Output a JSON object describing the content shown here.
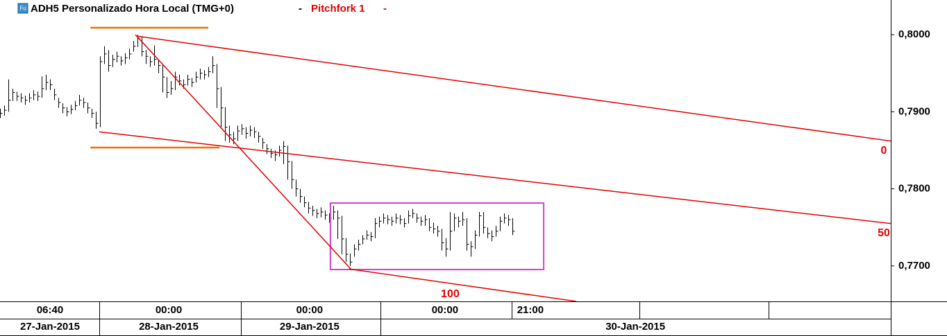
{
  "chart_data": {
    "type": "ohlc",
    "icon_label": "Fu",
    "title": "ADH5 Personalizado Hora Local (TMG+0)",
    "title_separator": "-",
    "indicator": "Pitchfork 1",
    "indicator_separator": "-",
    "color": "#000000",
    "xlim": [
      0,
      213.8
    ],
    "ylim": [
      0.7654,
      0.8045
    ],
    "yticks": [
      {
        "value": 0.77,
        "label": "0,7700"
      },
      {
        "value": 0.78,
        "label": "0,7800"
      },
      {
        "value": 0.79,
        "label": "0,7900"
      },
      {
        "value": 0.8,
        "label": "0,8000"
      }
    ],
    "xticks": [
      {
        "value": 12,
        "label": "06:40"
      },
      {
        "value": 40.5,
        "label": "00:00"
      },
      {
        "value": 74.3,
        "label": "00:00"
      },
      {
        "value": 106.8,
        "label": "00:00"
      },
      {
        "value": 127.3,
        "label": "21:00"
      }
    ],
    "date_ticks": [
      {
        "value": 12,
        "label": "27-Jan-2015"
      },
      {
        "value": 40.5,
        "label": "28-Jan-2015"
      },
      {
        "value": 74.3,
        "label": "29-Jan-2015"
      },
      {
        "value": 152.5,
        "label": "30-Jan-2015"
      }
    ],
    "high": [
      0.7904,
      0.7908,
      0.7942,
      0.793,
      0.7926,
      0.7924,
      0.7921,
      0.7924,
      0.7928,
      0.7926,
      0.7946,
      0.7948,
      0.7942,
      0.793,
      0.7918,
      0.7911,
      0.7906,
      0.7909,
      0.7914,
      0.7922,
      0.7918,
      0.7912,
      0.7904,
      0.79,
      0.7972,
      0.7985,
      0.798,
      0.7974,
      0.7978,
      0.7972,
      0.7976,
      0.7982,
      0.7992,
      0.8,
      0.7998,
      0.798,
      0.7972,
      0.7986,
      0.7968,
      0.7962,
      0.7945,
      0.794,
      0.7952,
      0.7948,
      0.7942,
      0.7948,
      0.7944,
      0.7952,
      0.7956,
      0.7954,
      0.7958,
      0.7972,
      0.7962,
      0.7932,
      0.7906,
      0.7882,
      0.7874,
      0.7882,
      0.7884,
      0.788,
      0.7882,
      0.788,
      0.7874,
      0.7866,
      0.7858,
      0.7852,
      0.785,
      0.7856,
      0.7862,
      0.7856,
      0.7836,
      0.7812,
      0.78,
      0.779,
      0.7783,
      0.7778,
      0.7774,
      0.7776,
      0.7772,
      0.7768,
      0.7778,
      0.7772,
      0.7765,
      0.7736,
      0.7716,
      0.7728,
      0.7734,
      0.774,
      0.7746,
      0.7744,
      0.7762,
      0.7764,
      0.7768,
      0.7766,
      0.7764,
      0.7768,
      0.7766,
      0.7762,
      0.7772,
      0.7774,
      0.7768,
      0.7764,
      0.7766,
      0.7762,
      0.7756,
      0.7752,
      0.7748,
      0.7736,
      0.777,
      0.7768,
      0.7764,
      0.777,
      0.7762,
      0.7732,
      0.7746,
      0.777,
      0.777,
      0.775,
      0.7746,
      0.7752,
      0.7764,
      0.7768,
      0.7766,
      0.7762
    ],
    "low": [
      0.7892,
      0.7895,
      0.79,
      0.7914,
      0.7914,
      0.7912,
      0.7909,
      0.7912,
      0.7915,
      0.7914,
      0.7918,
      0.7928,
      0.7928,
      0.7915,
      0.7905,
      0.7898,
      0.7894,
      0.7897,
      0.7902,
      0.7908,
      0.7905,
      0.7898,
      0.7892,
      0.7878,
      0.788,
      0.7962,
      0.7952,
      0.7958,
      0.7964,
      0.796,
      0.7962,
      0.7968,
      0.7978,
      0.7984,
      0.7972,
      0.7962,
      0.7958,
      0.796,
      0.795,
      0.7925,
      0.7918,
      0.7922,
      0.7928,
      0.7934,
      0.793,
      0.7934,
      0.7932,
      0.7938,
      0.7942,
      0.7942,
      0.7945,
      0.795,
      0.7905,
      0.788,
      0.7862,
      0.786,
      0.7858,
      0.7862,
      0.787,
      0.7865,
      0.7868,
      0.7866,
      0.786,
      0.7852,
      0.7845,
      0.784,
      0.7836,
      0.7842,
      0.7832,
      0.7812,
      0.78,
      0.779,
      0.7782,
      0.7776,
      0.7768,
      0.7765,
      0.7762,
      0.7763,
      0.776,
      0.7756,
      0.776,
      0.7735,
      0.7715,
      0.7705,
      0.77,
      0.7712,
      0.772,
      0.7728,
      0.7734,
      0.7732,
      0.7736,
      0.775,
      0.7755,
      0.7754,
      0.7752,
      0.7755,
      0.7754,
      0.775,
      0.7755,
      0.7762,
      0.7756,
      0.7752,
      0.7752,
      0.7745,
      0.7742,
      0.7738,
      0.772,
      0.7712,
      0.772,
      0.7745,
      0.775,
      0.7752,
      0.772,
      0.7712,
      0.7722,
      0.7738,
      0.7742,
      0.7736,
      0.7732,
      0.7738,
      0.7745,
      0.7755,
      0.7752,
      0.774
    ],
    "close": [
      0.7898,
      0.7902,
      0.7915,
      0.7925,
      0.792,
      0.7918,
      0.7915,
      0.7918,
      0.7922,
      0.792,
      0.793,
      0.7938,
      0.7935,
      0.7922,
      0.7912,
      0.7905,
      0.79,
      0.7903,
      0.7908,
      0.7915,
      0.7912,
      0.7905,
      0.7898,
      0.7885,
      0.7965,
      0.7975,
      0.796,
      0.7968,
      0.7972,
      0.7966,
      0.797,
      0.7975,
      0.7985,
      0.7995,
      0.7978,
      0.7972,
      0.7965,
      0.7968,
      0.796,
      0.7945,
      0.7925,
      0.793,
      0.7945,
      0.794,
      0.7935,
      0.7942,
      0.7938,
      0.7945,
      0.795,
      0.7948,
      0.7952,
      0.796,
      0.793,
      0.7905,
      0.788,
      0.787,
      0.7865,
      0.7875,
      0.7878,
      0.7872,
      0.7876,
      0.7874,
      0.7868,
      0.786,
      0.7852,
      0.7846,
      0.7844,
      0.785,
      0.7855,
      0.7835,
      0.7812,
      0.78,
      0.779,
      0.7782,
      0.7775,
      0.7772,
      0.7768,
      0.777,
      0.7766,
      0.7762,
      0.777,
      0.7762,
      0.7735,
      0.7715,
      0.7705,
      0.7722,
      0.7728,
      0.7735,
      0.774,
      0.7738,
      0.7755,
      0.7758,
      0.7762,
      0.776,
      0.7758,
      0.7762,
      0.776,
      0.7755,
      0.7765,
      0.7768,
      0.7762,
      0.7758,
      0.776,
      0.775,
      0.7748,
      0.7745,
      0.773,
      0.7722,
      0.7745,
      0.7762,
      0.7758,
      0.776,
      0.7728,
      0.7725,
      0.774,
      0.7765,
      0.775,
      0.7742,
      0.7738,
      0.7745,
      0.7758,
      0.7762,
      0.776,
      0.7745
    ],
    "pitchfork_color": "#e00000",
    "pitchfork": [
      {
        "label": "0",
        "points": [
          [
            33,
            0.7998
          ],
          [
            213.8,
            0.7862
          ]
        ]
      },
      {
        "label": "50",
        "points": [
          [
            23.8,
            0.7874
          ],
          [
            213.8,
            0.7755
          ]
        ]
      },
      {
        "label": "100",
        "points": [
          [
            83.8,
            0.7696
          ],
          [
            138.3,
            0.7654
          ]
        ]
      }
    ],
    "pitchfork_handle": [
      [
        32.5,
        0.8
      ],
      [
        84.2,
        0.7696
      ]
    ],
    "level_color": "#f07000",
    "levels": [
      {
        "x": [
          21.7,
          50
        ],
        "y": 0.8009
      },
      {
        "x": [
          21.7,
          52.7
        ],
        "y": 0.78535
      }
    ],
    "box_color": "#d040d0",
    "box": {
      "x": [
        79.3,
        130.5
      ],
      "y": [
        0.77816,
        0.76953
      ]
    }
  }
}
